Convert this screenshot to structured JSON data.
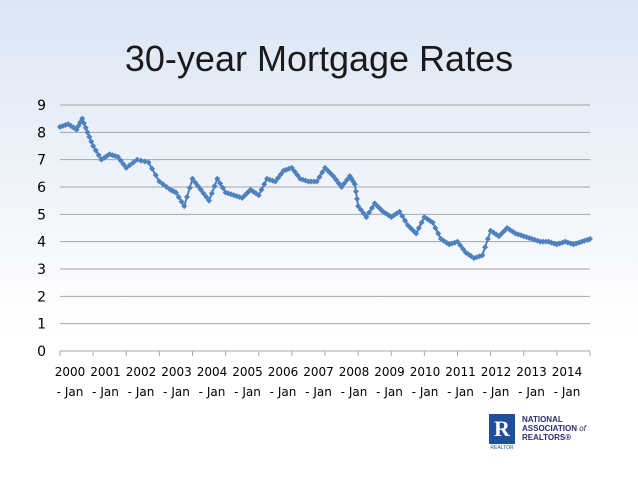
{
  "title": "30-year Mortgage Rates",
  "logo": {
    "letter": "R",
    "line1": "NATIONAL",
    "line2": "ASSOCIATION",
    "of": "of",
    "line3": "REALTORS®",
    "sub": "REALTOR"
  },
  "colors": {
    "series": "#4f81bd",
    "grid": "#a6a6a6"
  },
  "chart_data": {
    "type": "line",
    "title": "30-year Mortgage Rates",
    "xlabel": "",
    "ylabel": "",
    "ylim": [
      0,
      9
    ],
    "yticks": [
      0,
      1,
      2,
      3,
      4,
      5,
      6,
      7,
      8,
      9
    ],
    "grid": "horizontal",
    "legend": "none",
    "marker": "diamond",
    "categories": [
      {
        "year": "2000",
        "month": "- Jan"
      },
      {
        "year": "2001",
        "month": "- Jan"
      },
      {
        "year": "2002",
        "month": "- Jan"
      },
      {
        "year": "2003",
        "month": "- Jan"
      },
      {
        "year": "2004",
        "month": "- Jan"
      },
      {
        "year": "2005",
        "month": "- Jan"
      },
      {
        "year": "2006",
        "month": "- Jan"
      },
      {
        "year": "2007",
        "month": "- Jan"
      },
      {
        "year": "2008",
        "month": "- Jan"
      },
      {
        "year": "2009",
        "month": "- Jan"
      },
      {
        "year": "2010",
        "month": "- Jan"
      },
      {
        "year": "2011",
        "month": "- Jan"
      },
      {
        "year": "2012",
        "month": "- Jan"
      },
      {
        "year": "2013",
        "month": "- Jan"
      },
      {
        "year": "2014",
        "month": "- Jan"
      }
    ],
    "x": [
      2000.0,
      2000.25,
      2000.5,
      2000.67,
      2000.83,
      2001.0,
      2001.25,
      2001.5,
      2001.75,
      2002.0,
      2002.33,
      2002.67,
      2003.0,
      2003.33,
      2003.5,
      2003.75,
      2004.0,
      2004.25,
      2004.5,
      2004.75,
      2005.0,
      2005.25,
      2005.5,
      2005.75,
      2006.0,
      2006.25,
      2006.5,
      2006.75,
      2007.0,
      2007.25,
      2007.5,
      2007.75,
      2008.0,
      2008.25,
      2008.5,
      2008.75,
      2008.9,
      2009.0,
      2009.25,
      2009.5,
      2009.75,
      2010.0,
      2010.25,
      2010.5,
      2010.75,
      2011.0,
      2011.25,
      2011.5,
      2011.75,
      2012.0,
      2012.25,
      2012.5,
      2012.75,
      2013.0,
      2013.25,
      2013.5,
      2013.75,
      2014.0,
      2014.25,
      2014.5,
      2014.75,
      2015.0,
      2015.25,
      2015.5,
      2015.75,
      2016.0
    ],
    "y": [
      8.2,
      8.3,
      8.1,
      8.5,
      8.0,
      7.5,
      7.0,
      7.2,
      7.1,
      6.7,
      7.0,
      6.9,
      6.2,
      5.9,
      5.8,
      5.3,
      6.3,
      5.9,
      5.5,
      6.3,
      5.8,
      5.7,
      5.6,
      5.9,
      5.7,
      6.3,
      6.2,
      6.6,
      6.7,
      6.3,
      6.2,
      6.2,
      6.7,
      6.4,
      6.0,
      6.4,
      6.1,
      5.3,
      4.9,
      5.4,
      5.1,
      4.9,
      5.1,
      4.6,
      4.3,
      4.9,
      4.7,
      4.1,
      3.9,
      4.0,
      3.6,
      3.4,
      3.5,
      4.4,
      4.2,
      4.5,
      4.3,
      4.2,
      4.1,
      4.0,
      4.0,
      3.9,
      4.0,
      3.9,
      4.0,
      4.1
    ]
  }
}
